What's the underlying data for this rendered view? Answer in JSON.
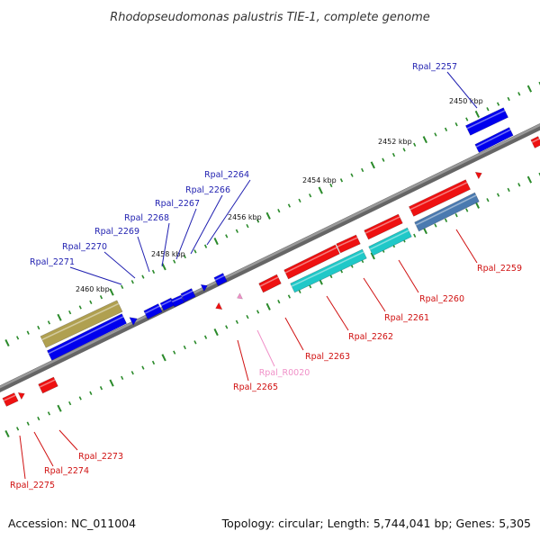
{
  "title": "Rhodopseudomonas palustris TIE-1, complete genome",
  "footer": {
    "accession": "Accession: NC_011004",
    "topology": "Topology: circular; Length: 5,744,041 bp; Genes: 5,305"
  },
  "colors": {
    "forward_label": "#1f1fb0",
    "reverse_label": "#d01010",
    "rna_label": "#f090c8",
    "forward_gene": "#0000ee",
    "reverse_gene": "#ee1111",
    "cyan_gene": "#20c8c8",
    "steel_gene": "#4a7ab0",
    "olive_gene": "#b0a050",
    "pink_gene": "#f090c8",
    "backbone": "#888888",
    "ticks": "#2a8a2a"
  },
  "scale": {
    "unit": "kbp",
    "labels": [
      "2450 kbp",
      "2452 kbp",
      "2454 kbp",
      "2456 kbp",
      "2458 kbp",
      "2460 kbp"
    ]
  },
  "genes": {
    "forward": [
      "Rpal_2257",
      "Rpal_2264",
      "Rpal_2266",
      "Rpal_2267",
      "Rpal_2268",
      "Rpal_2269",
      "Rpal_2270",
      "Rpal_2271"
    ],
    "reverse": [
      "Rpal_2259",
      "Rpal_2260",
      "Rpal_2261",
      "Rpal_2262",
      "Rpal_2263",
      "Rpal_2265",
      "Rpal_2273",
      "Rpal_2274",
      "Rpal_2275"
    ],
    "rna": [
      "Rpal_R0020"
    ]
  }
}
